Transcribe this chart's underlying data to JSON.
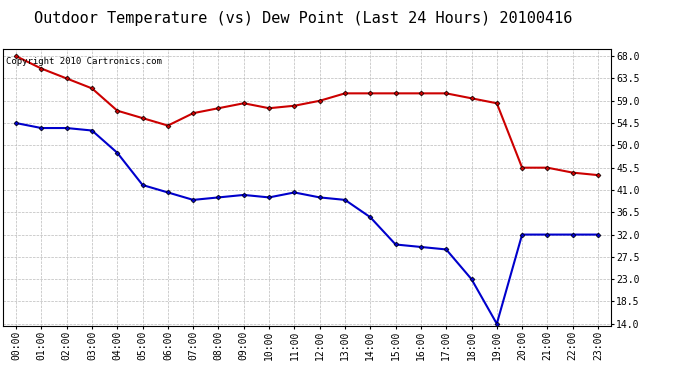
{
  "title": "Outdoor Temperature (vs) Dew Point (Last 24 Hours) 20100416",
  "copyright": "Copyright 2010 Cartronics.com",
  "x_labels": [
    "00:00",
    "01:00",
    "02:00",
    "03:00",
    "04:00",
    "05:00",
    "06:00",
    "07:00",
    "08:00",
    "09:00",
    "10:00",
    "11:00",
    "12:00",
    "13:00",
    "14:00",
    "15:00",
    "16:00",
    "17:00",
    "18:00",
    "19:00",
    "20:00",
    "21:00",
    "22:00",
    "23:00"
  ],
  "temp_values": [
    68.0,
    65.5,
    63.5,
    61.5,
    57.0,
    55.5,
    54.0,
    56.5,
    57.5,
    58.5,
    57.5,
    58.0,
    59.0,
    60.5,
    60.5,
    60.5,
    60.5,
    60.5,
    59.5,
    58.5,
    45.5,
    45.5,
    44.5,
    44.0
  ],
  "dew_values": [
    54.5,
    53.5,
    53.5,
    53.0,
    48.5,
    42.0,
    40.5,
    39.0,
    39.5,
    40.0,
    39.5,
    40.5,
    39.5,
    39.0,
    35.5,
    30.0,
    29.5,
    29.0,
    23.0,
    14.0,
    32.0,
    32.0,
    32.0,
    32.0
  ],
  "temp_color": "#cc0000",
  "dew_color": "#0000cc",
  "bg_color": "#ffffff",
  "grid_color": "#bbbbbb",
  "marker": "D",
  "marker_size": 2.5,
  "marker_color": "#000000",
  "ylim": [
    13.5,
    69.5
  ],
  "yticks": [
    14.0,
    18.5,
    23.0,
    27.5,
    32.0,
    36.5,
    41.0,
    45.5,
    50.0,
    54.5,
    59.0,
    63.5,
    68.0
  ],
  "title_fontsize": 11,
  "copyright_fontsize": 6.5,
  "tick_fontsize": 7,
  "linewidth": 1.5
}
